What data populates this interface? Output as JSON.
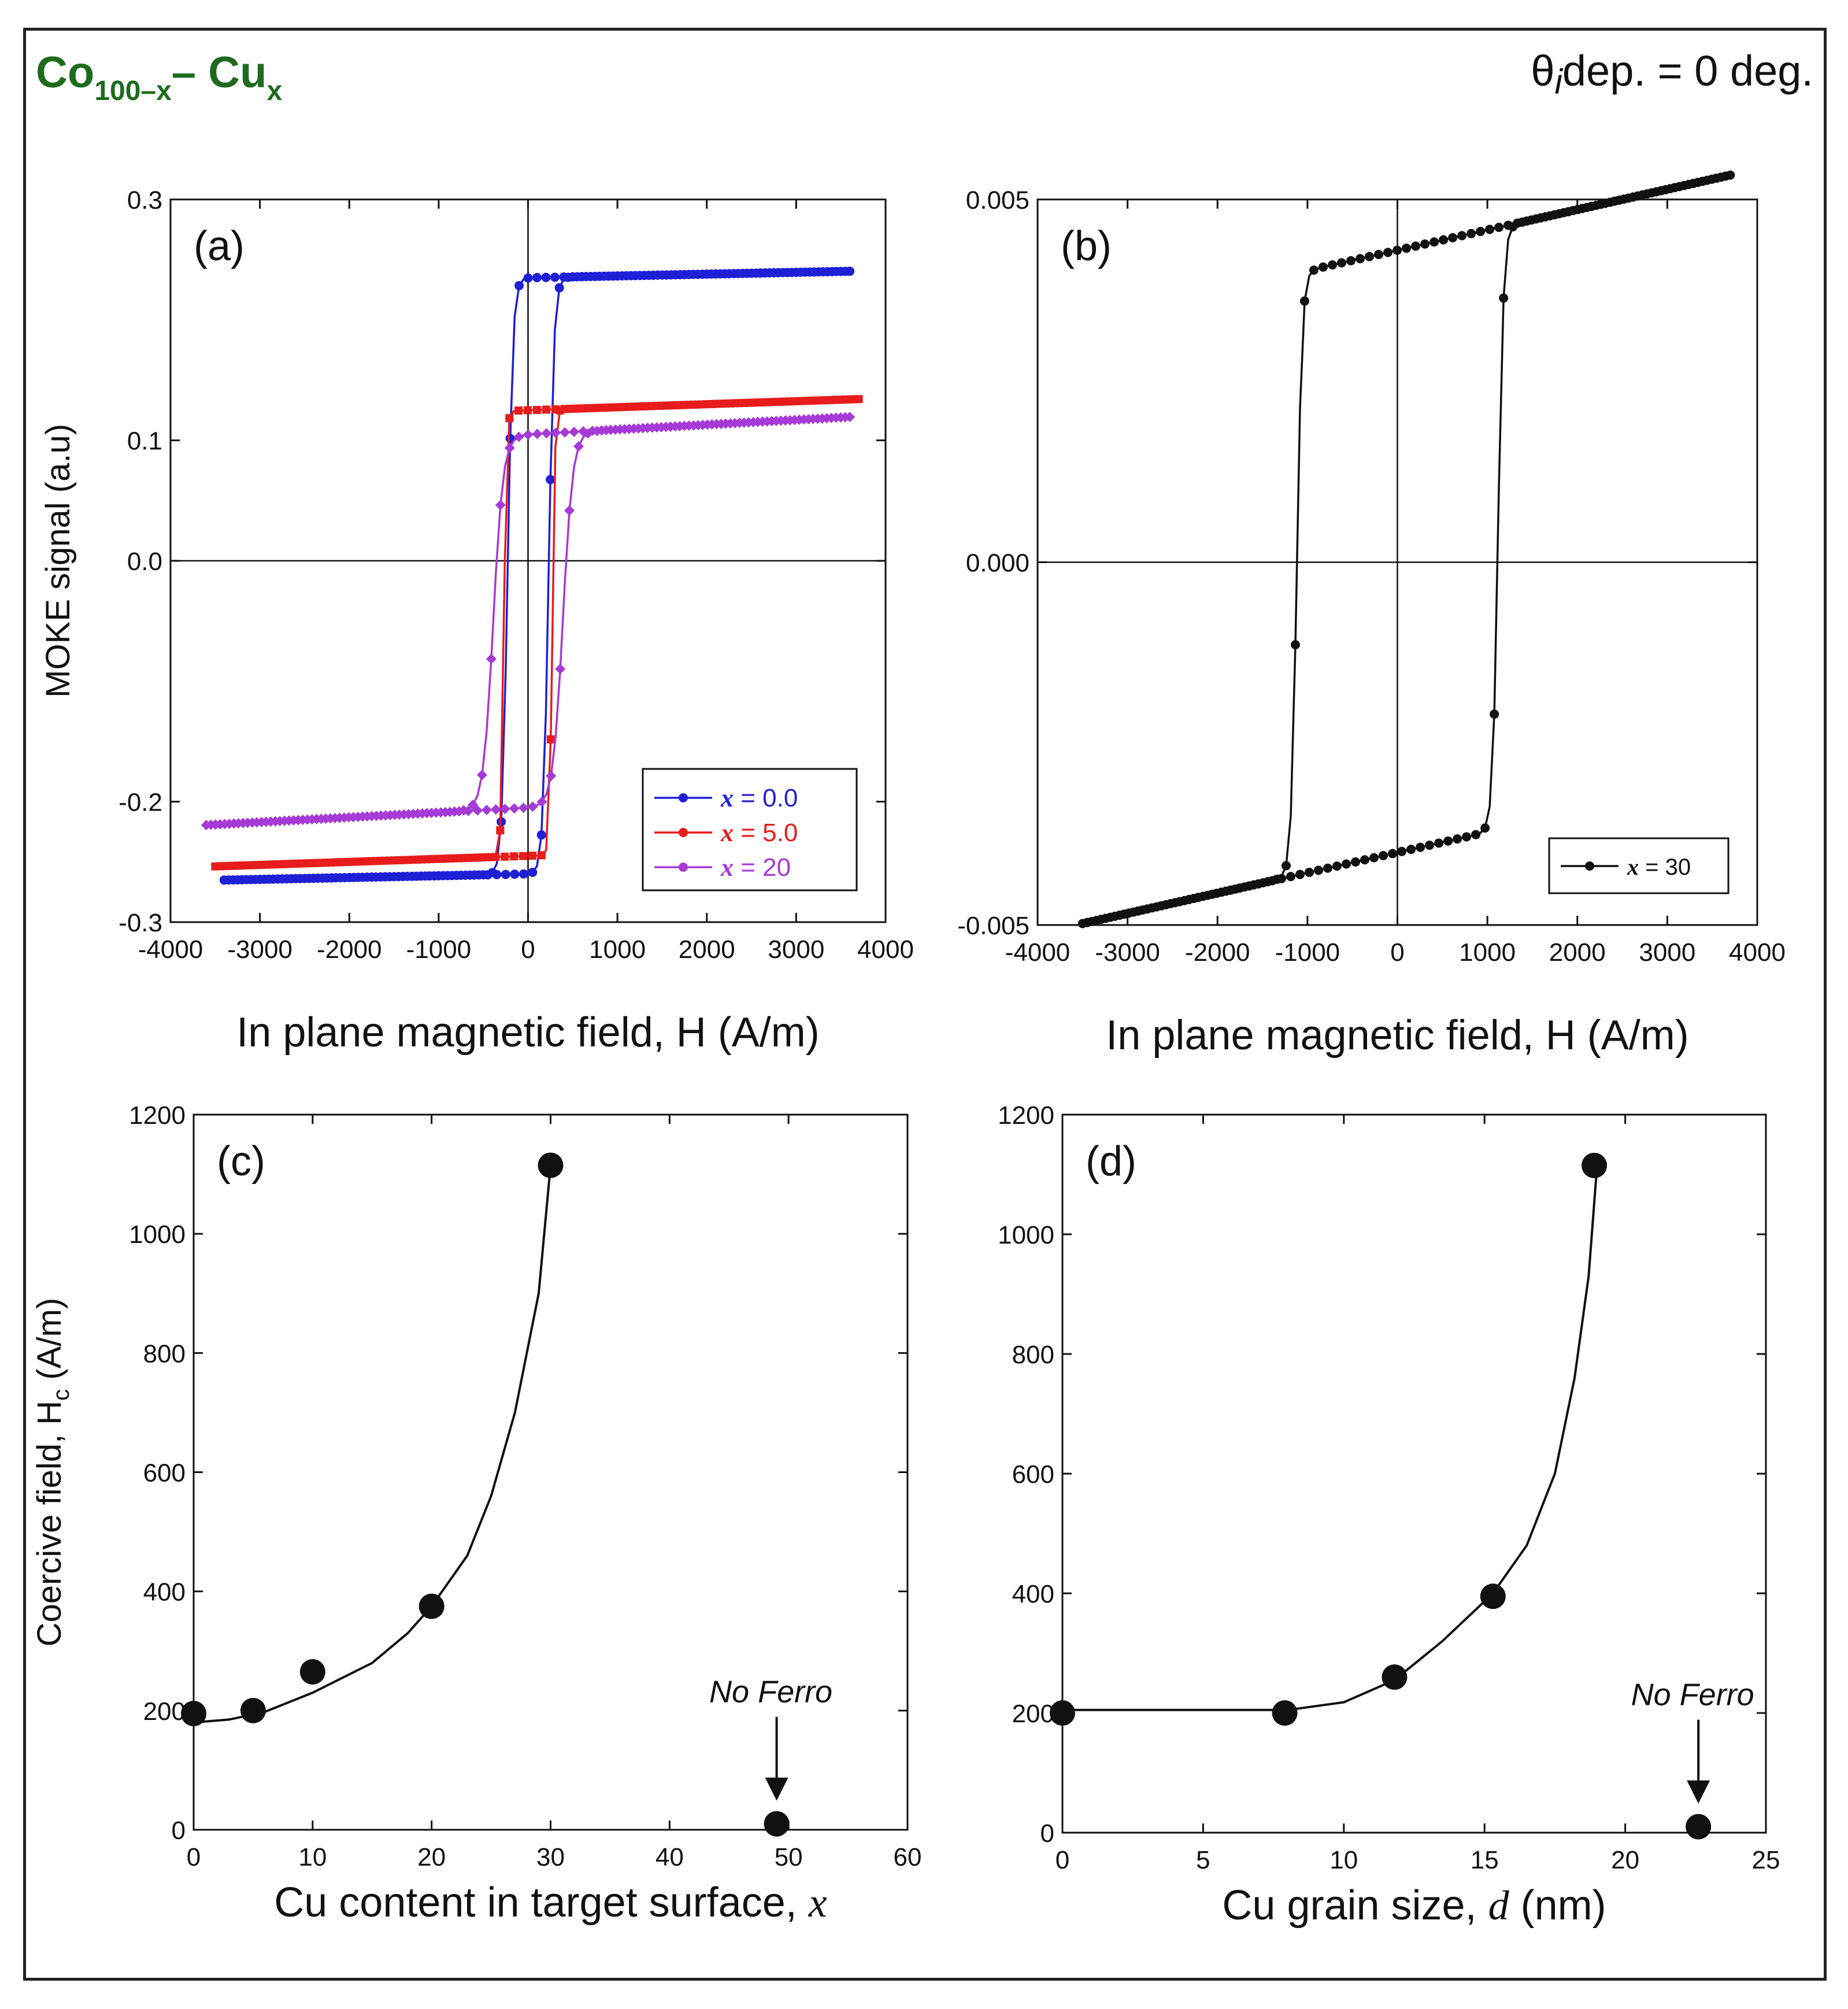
{
  "figure": {
    "title_main": "Co",
    "title_sub1": "100–x",
    "title_mid": "– Cu",
    "title_sub2": "x",
    "condition_symbol": "θ",
    "condition_sub": "i",
    "condition_text": "dep. = 0 deg."
  },
  "chart_data": [
    {
      "id": "a",
      "type": "line",
      "panel_label": "(a)",
      "xlabel": "In plane magnetic field, H (A/m)",
      "ylabel": "MOKE signal (a.u)",
      "xlim": [
        -4000,
        4000
      ],
      "ylim": [
        -0.3,
        0.3
      ],
      "xticks": [
        -4000,
        -3000,
        -2000,
        -1000,
        0,
        1000,
        2000,
        3000,
        4000
      ],
      "ytick_labels": [
        "0.3",
        "0.1",
        "0.0",
        "-0.2",
        "-0.3"
      ],
      "ytick_values": [
        0.3,
        0.1,
        0.0,
        -0.2,
        -0.3
      ],
      "legend_position": "bottom-right",
      "series": [
        {
          "name": "x = 0.0",
          "legend_prefix": "x",
          "legend_value": "= 0.0",
          "color": "#1f1fd6",
          "marker": "circle",
          "Hc": 230,
          "Msat_pos": 0.235,
          "Msat_neg": -0.26,
          "slope": 1.5e-06,
          "x_min": -3400,
          "x_max": 3600,
          "width": 60
        },
        {
          "name": "x = 5.0",
          "legend_prefix": "x",
          "legend_value": "= 5.0",
          "color": "#e81c1c",
          "marker": "square",
          "Hc": 270,
          "Msat_pos": 0.125,
          "Msat_neg": -0.245,
          "slope": 2.5e-06,
          "x_min": -3500,
          "x_max": 3700,
          "width": 30
        },
        {
          "name": "x = 20",
          "legend_prefix": "x",
          "legend_value": "= 20",
          "color": "#a53ad6",
          "marker": "diamond",
          "Hc": 390,
          "Msat_pos": 0.105,
          "Msat_neg": -0.205,
          "slope": 4e-06,
          "x_min": -3600,
          "x_max": 3600,
          "width": 110
        }
      ]
    },
    {
      "id": "b",
      "type": "line",
      "panel_label": "(b)",
      "xlabel": "In plane magnetic field, H (A/m)",
      "ylabel": "",
      "xlim": [
        -4000,
        4000
      ],
      "ylim": [
        -0.005,
        0.005
      ],
      "xticks": [
        -4000,
        -3000,
        -2000,
        -1000,
        0,
        1000,
        2000,
        3000,
        4000
      ],
      "ytick_labels": [
        "0.005",
        "0.000",
        "-0.005"
      ],
      "ytick_values": [
        0.005,
        0.0,
        -0.005
      ],
      "legend_position": "bottom-right",
      "series": [
        {
          "name": "x = 30",
          "legend_prefix": "x",
          "legend_value": "= 30",
          "color": "#111111",
          "marker": "circle",
          "Hc": 1120,
          "Msat_pos": 0.0043,
          "Msat_neg": -0.004,
          "slope": 2.8e-07,
          "x_min": -3500,
          "x_max": 3700,
          "width": 60
        }
      ]
    },
    {
      "id": "c",
      "type": "scatter",
      "panel_label": "(c)",
      "xlabel": "Cu content in target surface, ",
      "xlabel_var": "x",
      "ylabel": "Coercive field, H",
      "ylabel_sub": "c",
      "ylabel_unit": " (A/m)",
      "xlim": [
        0,
        60
      ],
      "ylim": [
        0,
        1200
      ],
      "xticks": [
        0,
        10,
        20,
        30,
        40,
        50,
        60
      ],
      "yticks": [
        0,
        200,
        400,
        600,
        800,
        1000,
        1200
      ],
      "points": [
        {
          "x": 0,
          "y": 195
        },
        {
          "x": 5,
          "y": 200
        },
        {
          "x": 10,
          "y": 265
        },
        {
          "x": 20,
          "y": 375
        },
        {
          "x": 30,
          "y": 1115
        },
        {
          "x": 49,
          "y": 10
        }
      ],
      "fit_curve": [
        {
          "x": 0,
          "y": 180
        },
        {
          "x": 3,
          "y": 185
        },
        {
          "x": 6,
          "y": 198
        },
        {
          "x": 10,
          "y": 230
        },
        {
          "x": 15,
          "y": 280
        },
        {
          "x": 18,
          "y": 330
        },
        {
          "x": 20,
          "y": 375
        },
        {
          "x": 23,
          "y": 460
        },
        {
          "x": 25,
          "y": 560
        },
        {
          "x": 27,
          "y": 700
        },
        {
          "x": 29,
          "y": 900
        },
        {
          "x": 30,
          "y": 1115
        }
      ],
      "annotation": {
        "text": "No Ferro",
        "x": 49,
        "y": 10
      }
    },
    {
      "id": "d",
      "type": "scatter",
      "panel_label": "(d)",
      "xlabel": "Cu grain size, ",
      "xlabel_var": "d",
      "xlabel_unit": " (nm)",
      "ylabel": "",
      "xlim": [
        0,
        25
      ],
      "ylim": [
        0,
        1200
      ],
      "xticks": [
        0,
        5,
        10,
        15,
        20,
        25
      ],
      "yticks": [
        0,
        200,
        400,
        600,
        800,
        1000,
        1200
      ],
      "points": [
        {
          "x": 0,
          "y": 200
        },
        {
          "x": 7.9,
          "y": 200
        },
        {
          "x": 11.8,
          "y": 260
        },
        {
          "x": 15.3,
          "y": 395
        },
        {
          "x": 18.9,
          "y": 1115
        },
        {
          "x": 22.6,
          "y": 10
        }
      ],
      "fit_curve": [
        {
          "x": 0,
          "y": 205
        },
        {
          "x": 8,
          "y": 205
        },
        {
          "x": 10,
          "y": 218
        },
        {
          "x": 11.8,
          "y": 255
        },
        {
          "x": 13.5,
          "y": 320
        },
        {
          "x": 15.3,
          "y": 400
        },
        {
          "x": 16.5,
          "y": 480
        },
        {
          "x": 17.5,
          "y": 600
        },
        {
          "x": 18.2,
          "y": 760
        },
        {
          "x": 18.7,
          "y": 930
        },
        {
          "x": 19.0,
          "y": 1115
        }
      ],
      "annotation": {
        "text": "No Ferro",
        "x": 22.6,
        "y": 10
      }
    }
  ]
}
